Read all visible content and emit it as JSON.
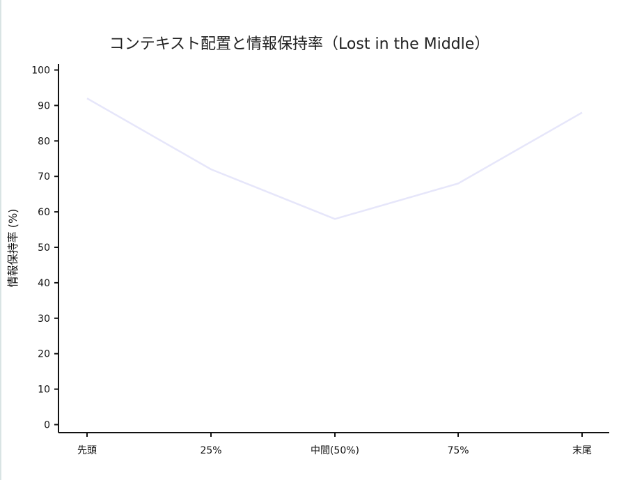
{
  "chart_data": {
    "type": "line",
    "title": "コンテキスト配置と情報保持率（Lost in the Middle）",
    "xlabel": "",
    "ylabel": "情報保持率 (%)",
    "categories": [
      "先頭",
      "25%",
      "中間(50%)",
      "75%",
      "末尾"
    ],
    "series": [
      {
        "values": [
          92,
          72,
          58,
          68,
          88
        ],
        "color": "#e6e6fa"
      }
    ],
    "ylim": [
      0,
      100
    ],
    "yticks": [
      0,
      10,
      20,
      30,
      40,
      50,
      60,
      70,
      80,
      90,
      100
    ],
    "grid": false,
    "legend": "none"
  }
}
